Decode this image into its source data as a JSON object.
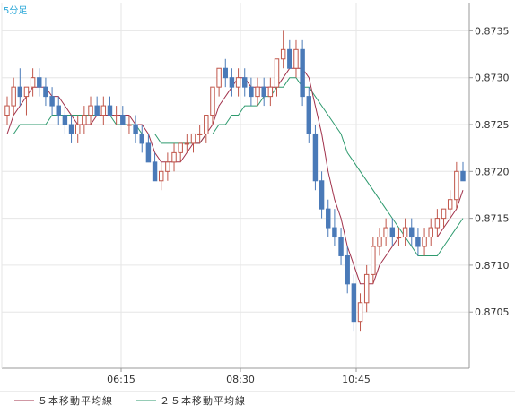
{
  "chart_data": {
    "type": "candlestick",
    "period_label": "5分足",
    "x_tick_labels": [
      "06:15",
      "08:30",
      "10:45"
    ],
    "ylim": [
      0.8699,
      0.8738
    ],
    "y_ticks": [
      0.8705,
      0.871,
      0.8715,
      0.872,
      0.8725,
      0.873,
      0.8735
    ],
    "y_tick_labels": [
      "0.8705",
      "0.8710",
      "0.8715",
      "0.8720",
      "0.8725",
      "0.8730",
      "0.8735"
    ],
    "grid": true,
    "legend_position": "bottom-left",
    "colors": {
      "up": "#c0564a",
      "down": "#4a7ab8",
      "ma5": "#a0304a",
      "ma25": "#2e9a6e",
      "grid": "#e6e6e6",
      "axis": "#999999"
    },
    "candles": [
      [
        0.8726,
        0.8728,
        0.8725,
        0.8727
      ],
      [
        0.8727,
        0.873,
        0.8726,
        0.8729
      ],
      [
        0.8729,
        0.8731,
        0.8727,
        0.8728
      ],
      [
        0.8728,
        0.8729,
        0.8726,
        0.8729
      ],
      [
        0.8729,
        0.8731,
        0.8728,
        0.873
      ],
      [
        0.873,
        0.8731,
        0.8728,
        0.8729
      ],
      [
        0.8729,
        0.873,
        0.8727,
        0.8728
      ],
      [
        0.8728,
        0.8729,
        0.8726,
        0.8727
      ],
      [
        0.8727,
        0.8728,
        0.8725,
        0.8726
      ],
      [
        0.8726,
        0.8727,
        0.8724,
        0.8725
      ],
      [
        0.8725,
        0.8726,
        0.8723,
        0.8724
      ],
      [
        0.8724,
        0.8726,
        0.8723,
        0.8725
      ],
      [
        0.8725,
        0.8727,
        0.8724,
        0.8726
      ],
      [
        0.8726,
        0.8728,
        0.8725,
        0.8727
      ],
      [
        0.8727,
        0.8728,
        0.8726,
        0.8726
      ],
      [
        0.8726,
        0.8728,
        0.8725,
        0.8727
      ],
      [
        0.8727,
        0.8728,
        0.8726,
        0.8726
      ],
      [
        0.8726,
        0.8727,
        0.8725,
        0.8726
      ],
      [
        0.8726,
        0.8727,
        0.8725,
        0.8725
      ],
      [
        0.8725,
        0.8726,
        0.8724,
        0.8725
      ],
      [
        0.8725,
        0.8726,
        0.8723,
        0.8724
      ],
      [
        0.8724,
        0.8725,
        0.8722,
        0.8723
      ],
      [
        0.8723,
        0.8724,
        0.8721,
        0.8721
      ],
      [
        0.8721,
        0.8722,
        0.8719,
        0.8719
      ],
      [
        0.8719,
        0.8721,
        0.8718,
        0.872
      ],
      [
        0.872,
        0.8722,
        0.8719,
        0.8721
      ],
      [
        0.8721,
        0.8723,
        0.872,
        0.8722
      ],
      [
        0.8722,
        0.8723,
        0.8721,
        0.8723
      ],
      [
        0.8723,
        0.8724,
        0.8722,
        0.8723
      ],
      [
        0.8723,
        0.8724,
        0.8722,
        0.8724
      ],
      [
        0.8724,
        0.8725,
        0.8723,
        0.8724
      ],
      [
        0.8724,
        0.8726,
        0.8723,
        0.8726
      ],
      [
        0.8726,
        0.8729,
        0.8725,
        0.8729
      ],
      [
        0.8729,
        0.8731,
        0.8728,
        0.8731
      ],
      [
        0.8731,
        0.8732,
        0.8729,
        0.873
      ],
      [
        0.873,
        0.8731,
        0.8728,
        0.8729
      ],
      [
        0.8729,
        0.8731,
        0.8728,
        0.873
      ],
      [
        0.873,
        0.8731,
        0.8728,
        0.8729
      ],
      [
        0.8729,
        0.873,
        0.8727,
        0.8728
      ],
      [
        0.8728,
        0.873,
        0.8727,
        0.8729
      ],
      [
        0.8729,
        0.873,
        0.8727,
        0.8728
      ],
      [
        0.8728,
        0.873,
        0.8727,
        0.8729
      ],
      [
        0.8729,
        0.8732,
        0.8728,
        0.8732
      ],
      [
        0.8732,
        0.8735,
        0.8731,
        0.8733
      ],
      [
        0.8733,
        0.8734,
        0.8731,
        0.8731
      ],
      [
        0.8731,
        0.8734,
        0.873,
        0.8733
      ],
      [
        0.8733,
        0.8734,
        0.8727,
        0.8728
      ],
      [
        0.8728,
        0.8729,
        0.8723,
        0.8724
      ],
      [
        0.8724,
        0.8725,
        0.8718,
        0.8719
      ],
      [
        0.8719,
        0.872,
        0.8715,
        0.8716
      ],
      [
        0.8716,
        0.8717,
        0.8713,
        0.8714
      ],
      [
        0.8714,
        0.8716,
        0.8712,
        0.8713
      ],
      [
        0.8713,
        0.8714,
        0.871,
        0.8711
      ],
      [
        0.8711,
        0.8712,
        0.8707,
        0.8708
      ],
      [
        0.8708,
        0.8709,
        0.8703,
        0.8704
      ],
      [
        0.8704,
        0.8707,
        0.8703,
        0.8706
      ],
      [
        0.8706,
        0.871,
        0.8705,
        0.8709
      ],
      [
        0.8709,
        0.8713,
        0.8708,
        0.8712
      ],
      [
        0.8712,
        0.8714,
        0.8711,
        0.8713
      ],
      [
        0.8713,
        0.8715,
        0.8712,
        0.8714
      ],
      [
        0.8714,
        0.8715,
        0.8712,
        0.8713
      ],
      [
        0.8713,
        0.8714,
        0.8712,
        0.8713
      ],
      [
        0.8713,
        0.8715,
        0.8712,
        0.8714
      ],
      [
        0.8714,
        0.8715,
        0.8712,
        0.8713
      ],
      [
        0.8713,
        0.8714,
        0.8711,
        0.8712
      ],
      [
        0.8712,
        0.8714,
        0.8711,
        0.8713
      ],
      [
        0.8713,
        0.8715,
        0.8712,
        0.8714
      ],
      [
        0.8714,
        0.8716,
        0.8713,
        0.8715
      ],
      [
        0.8715,
        0.8716,
        0.8714,
        0.8716
      ],
      [
        0.8716,
        0.8718,
        0.8715,
        0.8717
      ],
      [
        0.8717,
        0.8721,
        0.8716,
        0.872
      ],
      [
        0.872,
        0.8721,
        0.8719,
        0.8719
      ]
    ],
    "series": [
      {
        "name": "５本移動平均線",
        "values": [
          0.8724,
          0.8726,
          0.8727,
          0.8728,
          0.8729,
          0.8729,
          0.8729,
          0.8728,
          0.8728,
          0.8727,
          0.8726,
          0.8725,
          0.8725,
          0.8725,
          0.8726,
          0.8726,
          0.8726,
          0.8726,
          0.8726,
          0.8726,
          0.8725,
          0.8725,
          0.8724,
          0.8722,
          0.8721,
          0.8721,
          0.8721,
          0.8721,
          0.8722,
          0.8723,
          0.8723,
          0.8724,
          0.8725,
          0.8727,
          0.8728,
          0.8729,
          0.873,
          0.873,
          0.8729,
          0.8729,
          0.8729,
          0.8729,
          0.8729,
          0.873,
          0.8731,
          0.8731,
          0.8731,
          0.873,
          0.8727,
          0.8724,
          0.872,
          0.8717,
          0.8715,
          0.8712,
          0.871,
          0.8708,
          0.8708,
          0.8708,
          0.871,
          0.8711,
          0.8712,
          0.8713,
          0.8713,
          0.8713,
          0.8713,
          0.8713,
          0.8713,
          0.8713,
          0.8714,
          0.8715,
          0.8716,
          0.8718
        ]
      },
      {
        "name": "２５本移動平均線",
        "values": [
          0.8724,
          0.8724,
          0.8725,
          0.8725,
          0.8725,
          0.8725,
          0.8725,
          0.8726,
          0.8726,
          0.8726,
          0.8726,
          0.8726,
          0.8726,
          0.8726,
          0.8726,
          0.8726,
          0.8726,
          0.8725,
          0.8725,
          0.8725,
          0.8725,
          0.8724,
          0.8724,
          0.8724,
          0.8723,
          0.8723,
          0.8723,
          0.8723,
          0.8723,
          0.8723,
          0.8723,
          0.8724,
          0.8724,
          0.8725,
          0.8725,
          0.8726,
          0.8726,
          0.8727,
          0.8727,
          0.8727,
          0.8728,
          0.8728,
          0.8729,
          0.8729,
          0.873,
          0.873,
          0.8729,
          0.8729,
          0.8728,
          0.8727,
          0.8726,
          0.8725,
          0.8724,
          0.8722,
          0.8721,
          0.872,
          0.8719,
          0.8718,
          0.8717,
          0.8716,
          0.8715,
          0.8714,
          0.8713,
          0.8712,
          0.8711,
          0.8711,
          0.8711,
          0.8711,
          0.8712,
          0.8713,
          0.8714,
          0.8715
        ]
      }
    ]
  }
}
